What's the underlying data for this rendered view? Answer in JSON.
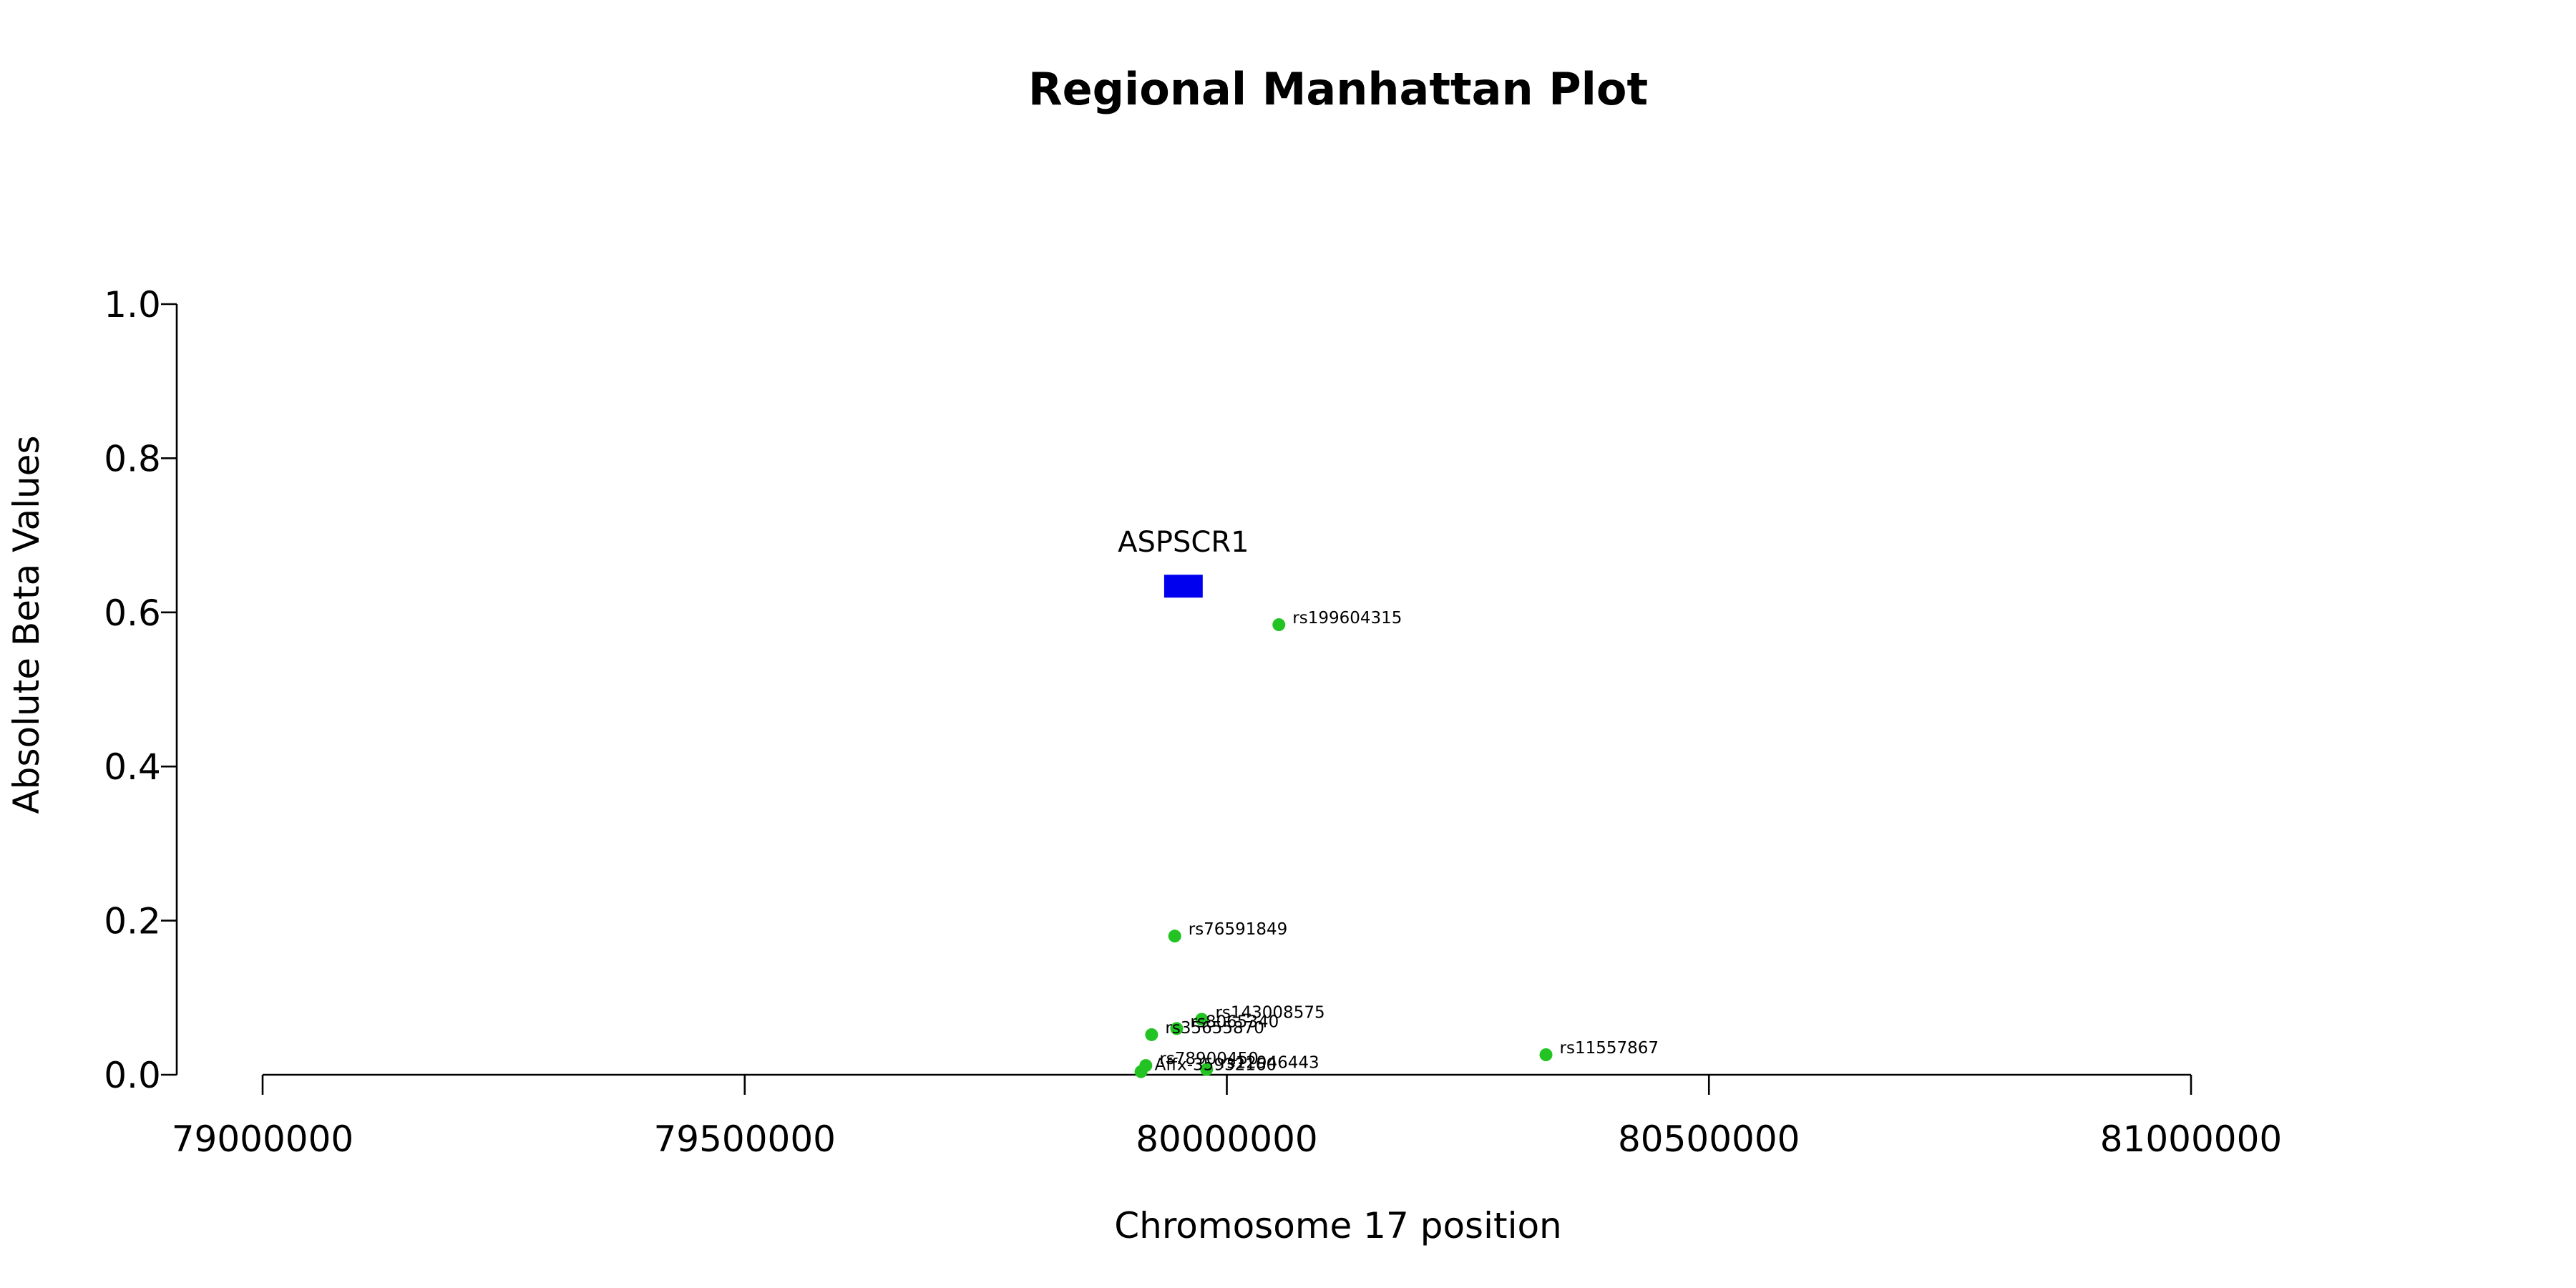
{
  "chart_data": {
    "type": "scatter",
    "title": "Regional Manhattan Plot",
    "xlabel": "Chromosome 17 position",
    "ylabel": "Absolute Beta Values",
    "xlim": [
      79000000,
      81000000
    ],
    "ylim": [
      0,
      1
    ],
    "x_ticks": [
      79000000,
      79500000,
      80000000,
      80500000,
      81000000
    ],
    "x_tick_labels": [
      "79000000",
      "79500000",
      "80000000",
      "80500000",
      "81000000"
    ],
    "y_ticks": [
      0,
      0.2,
      0.4,
      0.6,
      0.8,
      1.0
    ],
    "y_tick_labels": [
      "0.0",
      "0.2",
      "0.4",
      "0.6",
      "0.8",
      "1.0"
    ],
    "grid": false,
    "point_color": "#22c322",
    "gene_color": "#0000ee",
    "genes": [
      {
        "name": "ASPSCR1",
        "start": 79935000,
        "end": 79975000,
        "y": 0.634
      }
    ],
    "points": [
      {
        "label": "rs199604315",
        "x": 80054000,
        "y": 0.584
      },
      {
        "label": "rs76591849",
        "x": 79946000,
        "y": 0.18
      },
      {
        "label": "rs143008575",
        "x": 79974000,
        "y": 0.072
      },
      {
        "label": "rs8065340",
        "x": 79948000,
        "y": 0.06
      },
      {
        "label": "rs35655870",
        "x": 79922000,
        "y": 0.052
      },
      {
        "label": "rs11557867",
        "x": 80331000,
        "y": 0.026
      },
      {
        "label": "rs78900450",
        "x": 79916000,
        "y": 0.012
      },
      {
        "label": "rs12946443",
        "x": 79979000,
        "y": 0.007
      },
      {
        "label": "Affx-35932160",
        "x": 79911000,
        "y": 0.004
      }
    ]
  }
}
